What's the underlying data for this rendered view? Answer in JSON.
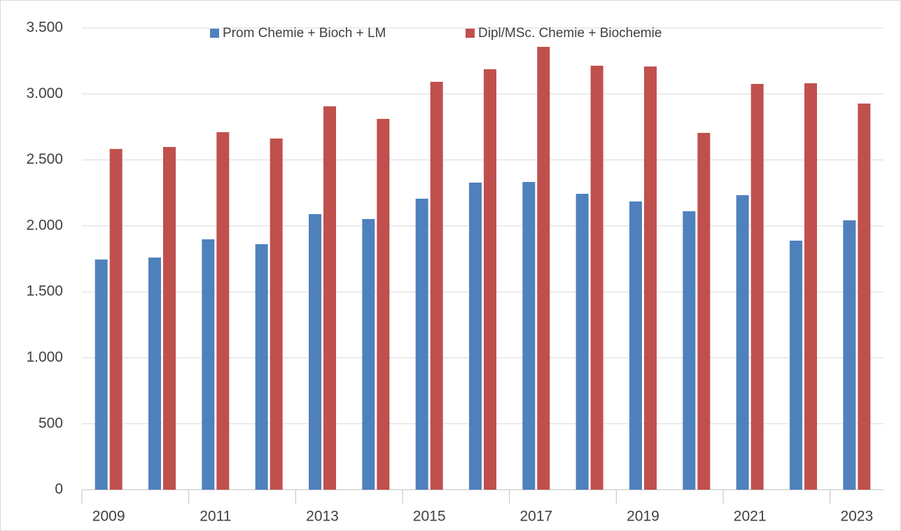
{
  "chart_data": {
    "type": "bar",
    "categories": [
      "2009",
      null,
      "2011",
      null,
      "2013",
      null,
      "2015",
      null,
      "2017",
      null,
      "2019",
      null,
      "2021",
      null,
      "2023"
    ],
    "series": [
      {
        "name": "Prom Chemie + Bioch + LM",
        "color": "#4f81bd",
        "values": [
          1745,
          1760,
          1898,
          1861,
          2089,
          2052,
          2206,
          2328,
          2333,
          2243,
          2185,
          2111,
          2233,
          1888,
          2042
        ]
      },
      {
        "name": "Dipl/MSc. Chemie + Biochemie",
        "color": "#c0504d",
        "values": [
          2583,
          2598,
          2710,
          2662,
          2906,
          2811,
          3092,
          3187,
          3357,
          3214,
          3208,
          2705,
          3076,
          3081,
          2927
        ]
      }
    ],
    "ylim": [
      0,
      3500
    ],
    "yticks": [
      0,
      500,
      {
        "value": 1000,
        "label": "1.000"
      },
      {
        "value": 1500,
        "label": "1.500"
      },
      {
        "value": 2000,
        "label": "2.000"
      },
      {
        "value": 2500,
        "label": "2.500"
      },
      {
        "value": 3000,
        "label": "3.000"
      },
      {
        "value": 3500,
        "label": "3.500"
      }
    ],
    "grid": true,
    "legend": "top"
  }
}
